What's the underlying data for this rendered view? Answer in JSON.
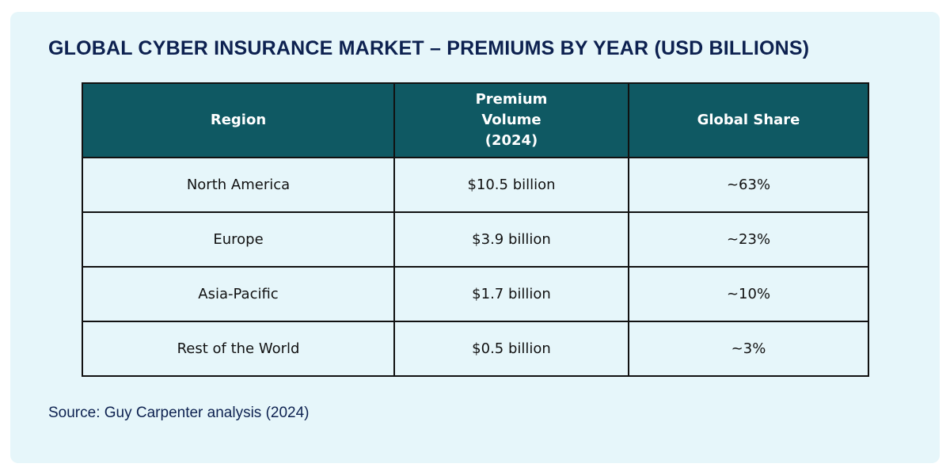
{
  "title": "GLOBAL CYBER INSURANCE MARKET – PREMIUMS BY YEAR (USD BILLIONS)",
  "source": "Source: Guy Carpenter analysis (2024)",
  "colors": {
    "background": "#e6f6fa",
    "header": "#0f5963",
    "title": "#0d2150"
  },
  "chart_data": {
    "type": "table",
    "columns": [
      "Region",
      "Premium Volume (2024)",
      "Global Share"
    ],
    "rows": [
      [
        "North America",
        "$10.5 billion",
        "~63%"
      ],
      [
        "Europe",
        "$3.9 billion",
        "~23%"
      ],
      [
        "Asia-Pacific",
        "$1.7 billion",
        "~10%"
      ],
      [
        "Rest of the World",
        "$0.5 billion",
        "~3%"
      ]
    ]
  }
}
